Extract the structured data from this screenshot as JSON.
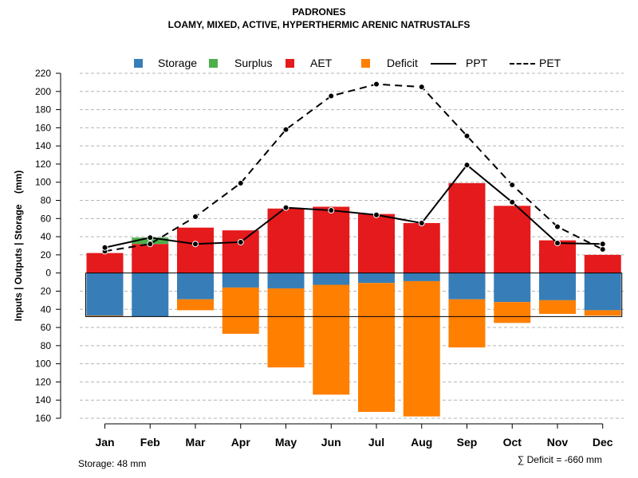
{
  "title": "PADRONES",
  "subtitle": "LOAMY, MIXED, ACTIVE, HYPERTHERMIC ARENIC NATRUSTALFS",
  "storage_note": "Storage: 48 mm",
  "deficit_note": "∑ Deficit = -660 mm",
  "legend": {
    "storage": "Storage",
    "surplus": "Surplus",
    "aet": "AET",
    "deficit": "Deficit",
    "ppt": "PPT",
    "pet": "PET"
  },
  "colors": {
    "storage": "#377eb8",
    "surplus": "#4daf4a",
    "aet": "#e41a1c",
    "deficit": "#ff7f00",
    "grid": "#b4b4b4"
  },
  "chart_data": {
    "type": "bar",
    "ylabel": "Inputs | Outputs | Storage    (mm)",
    "categories": [
      "Jan",
      "Feb",
      "Mar",
      "Apr",
      "May",
      "Jun",
      "Jul",
      "Aug",
      "Sep",
      "Oct",
      "Nov",
      "Dec"
    ],
    "ylim": [
      -160,
      220
    ],
    "yticks": [
      220,
      200,
      180,
      160,
      140,
      120,
      100,
      80,
      60,
      40,
      20,
      0,
      -20,
      -40,
      -60,
      -80,
      -100,
      -120,
      -140,
      -160
    ],
    "ytick_labels": [
      "220",
      "200",
      "180",
      "160",
      "140",
      "120",
      "100",
      "80",
      "60",
      "40",
      "20",
      "0",
      "20",
      "40",
      "60",
      "80",
      "100",
      "120",
      "140",
      "160"
    ],
    "storage_capacity": 48,
    "series": [
      {
        "name": "AET",
        "values": [
          22,
          32,
          50,
          47,
          71,
          73,
          65,
          55,
          99,
          74,
          36,
          20
        ]
      },
      {
        "name": "Surplus",
        "values": [
          0,
          7,
          0,
          0,
          0,
          0,
          0,
          0,
          0,
          0,
          0,
          0
        ]
      },
      {
        "name": "Storage",
        "values": [
          -47,
          -48,
          -29,
          -16,
          -17,
          -13,
          -11,
          -9,
          -29,
          -32,
          -30,
          -41
        ]
      },
      {
        "name": "Deficit",
        "values": [
          -1,
          0,
          -12,
          -51,
          -87,
          -121,
          -142,
          -149,
          -53,
          -23,
          -15,
          -6
        ]
      },
      {
        "name": "PPT",
        "values": [
          28,
          39,
          32,
          34,
          72,
          69,
          64,
          55,
          119,
          78,
          33,
          32
        ]
      },
      {
        "name": "PET",
        "values": [
          24,
          32,
          62,
          99,
          158,
          195,
          208,
          205,
          151,
          97,
          51,
          26
        ]
      }
    ]
  }
}
